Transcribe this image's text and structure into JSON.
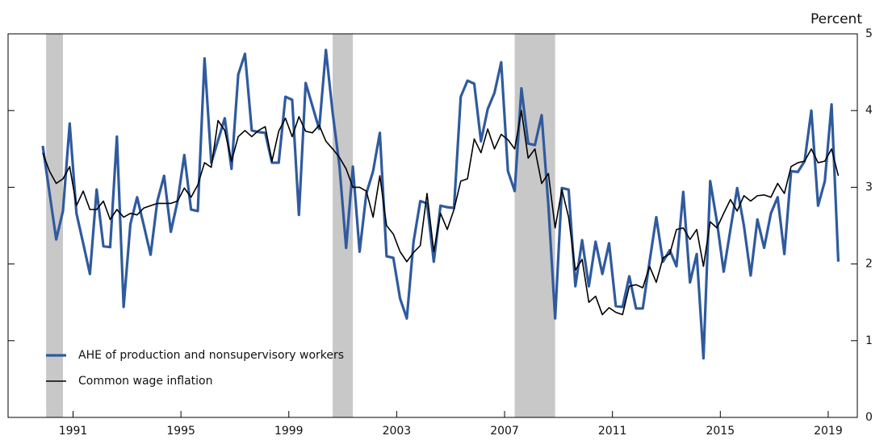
{
  "chart_data": {
    "type": "line",
    "y_axis_label": "Percent",
    "x": [
      1990.375,
      1990.625,
      1990.875,
      1991.125,
      1991.375,
      1991.625,
      1991.875,
      1992.125,
      1992.375,
      1992.625,
      1992.875,
      1993.125,
      1993.375,
      1993.625,
      1993.875,
      1994.125,
      1994.375,
      1994.625,
      1994.875,
      1995.125,
      1995.375,
      1995.625,
      1995.875,
      1996.125,
      1996.375,
      1996.625,
      1996.875,
      1997.125,
      1997.375,
      1997.625,
      1997.875,
      1998.125,
      1998.375,
      1998.625,
      1998.875,
      1999.125,
      1999.375,
      1999.625,
      1999.875,
      2000.125,
      2000.375,
      2000.625,
      2000.875,
      2001.125,
      2001.375,
      2001.625,
      2001.875,
      2002.125,
      2002.375,
      2002.625,
      2002.875,
      2003.125,
      2003.375,
      2003.625,
      2003.875,
      2004.125,
      2004.375,
      2004.625,
      2004.875,
      2005.125,
      2005.375,
      2005.625,
      2005.875,
      2006.125,
      2006.375,
      2006.625,
      2006.875,
      2007.125,
      2007.375,
      2007.625,
      2007.875,
      2008.125,
      2008.375,
      2008.625,
      2008.875,
      2009.125,
      2009.375,
      2009.625,
      2009.875,
      2010.125,
      2010.375,
      2010.625,
      2010.875,
      2011.125,
      2011.375,
      2011.625,
      2011.875,
      2012.125,
      2012.375,
      2012.625,
      2012.875,
      2013.125,
      2013.375,
      2013.625,
      2013.875,
      2014.125,
      2014.375,
      2014.625,
      2014.875,
      2015.125,
      2015.375,
      2015.625,
      2015.875,
      2016.125,
      2016.375,
      2016.625,
      2016.875,
      2017.125,
      2017.375,
      2017.625,
      2017.875,
      2018.125,
      2018.375,
      2018.625,
      2018.875,
      2019.125,
      2019.375,
      2019.625,
      2019.875
    ],
    "series": [
      {
        "name": "AHE of production and nonsupervisory workers",
        "color": "#2f5a9e",
        "width": 3.2,
        "values": [
          3.54,
          2.93,
          2.32,
          2.69,
          3.83,
          2.66,
          2.27,
          1.87,
          2.97,
          2.23,
          2.22,
          3.66,
          1.44,
          2.52,
          2.87,
          2.5,
          2.12,
          2.82,
          3.15,
          2.42,
          2.82,
          3.42,
          2.71,
          2.69,
          4.68,
          3.32,
          3.61,
          3.9,
          3.24,
          4.47,
          4.74,
          3.74,
          3.72,
          3.71,
          3.32,
          3.32,
          4.18,
          4.14,
          2.64,
          4.36,
          4.06,
          3.76,
          4.79,
          3.97,
          3.29,
          2.21,
          3.27,
          2.16,
          2.92,
          3.21,
          3.71,
          2.1,
          2.08,
          1.55,
          1.29,
          2.29,
          2.82,
          2.79,
          2.03,
          2.76,
          2.74,
          2.73,
          4.18,
          4.39,
          4.35,
          3.6,
          4.02,
          4.23,
          4.63,
          3.21,
          2.95,
          4.29,
          3.57,
          3.55,
          3.94,
          2.76,
          1.29,
          2.99,
          2.97,
          1.71,
          2.31,
          1.71,
          2.29,
          1.87,
          2.27,
          1.45,
          1.44,
          1.84,
          1.42,
          1.42,
          2.03,
          2.61,
          2.03,
          2.18,
          1.97,
          2.94,
          1.76,
          2.13,
          0.77,
          3.08,
          2.55,
          1.9,
          2.45,
          2.99,
          2.5,
          1.85,
          2.58,
          2.21,
          2.66,
          2.87,
          2.13,
          3.21,
          3.2,
          3.34,
          4.0,
          2.76,
          3.08,
          4.08,
          2.03
        ]
      },
      {
        "name": "Common wage inflation",
        "color": "#000000",
        "width": 1.6,
        "values": [
          3.45,
          3.21,
          3.05,
          3.11,
          3.27,
          2.76,
          2.95,
          2.71,
          2.71,
          2.82,
          2.58,
          2.71,
          2.61,
          2.66,
          2.64,
          2.73,
          2.76,
          2.79,
          2.79,
          2.79,
          2.82,
          2.99,
          2.87,
          3.03,
          3.32,
          3.26,
          3.87,
          3.74,
          3.34,
          3.66,
          3.74,
          3.66,
          3.74,
          3.79,
          3.34,
          3.73,
          3.9,
          3.66,
          3.92,
          3.73,
          3.71,
          3.81,
          3.6,
          3.5,
          3.39,
          3.24,
          3.0,
          3.0,
          2.95,
          2.61,
          3.15,
          2.5,
          2.39,
          2.16,
          2.03,
          2.15,
          2.24,
          2.92,
          2.16,
          2.66,
          2.45,
          2.71,
          3.08,
          3.11,
          3.63,
          3.45,
          3.76,
          3.5,
          3.69,
          3.62,
          3.5,
          4.0,
          3.38,
          3.5,
          3.05,
          3.18,
          2.47,
          2.97,
          2.61,
          1.92,
          2.06,
          1.5,
          1.58,
          1.34,
          1.43,
          1.37,
          1.34,
          1.71,
          1.73,
          1.69,
          1.97,
          1.76,
          2.08,
          2.13,
          2.45,
          2.47,
          2.32,
          2.45,
          1.97,
          2.55,
          2.47,
          2.66,
          2.84,
          2.69,
          2.89,
          2.82,
          2.89,
          2.9,
          2.87,
          3.05,
          2.92,
          3.27,
          3.32,
          3.34,
          3.5,
          3.32,
          3.34,
          3.5,
          3.15
        ]
      }
    ],
    "recessions": [
      [
        1990.5,
        1991.125
      ],
      [
        2001.125,
        2001.875
      ],
      [
        2007.875,
        2009.375
      ]
    ],
    "recession_color": "#c8c8c8",
    "xlim": [
      1989.09,
      2020.58
    ],
    "xticks": [
      {
        "value": 1991.5,
        "label": "1991"
      },
      {
        "value": 1995.5,
        "label": "1995"
      },
      {
        "value": 1999.5,
        "label": "1999"
      },
      {
        "value": 2003.5,
        "label": "2003"
      },
      {
        "value": 2007.5,
        "label": "2007"
      },
      {
        "value": 2011.5,
        "label": "2011"
      },
      {
        "value": 2015.5,
        "label": "2015"
      },
      {
        "value": 2019.5,
        "label": "2019"
      }
    ],
    "ylim": [
      0,
      5
    ],
    "yticks": [
      0,
      1,
      2,
      3,
      4,
      5
    ],
    "legend": "lower-left"
  }
}
